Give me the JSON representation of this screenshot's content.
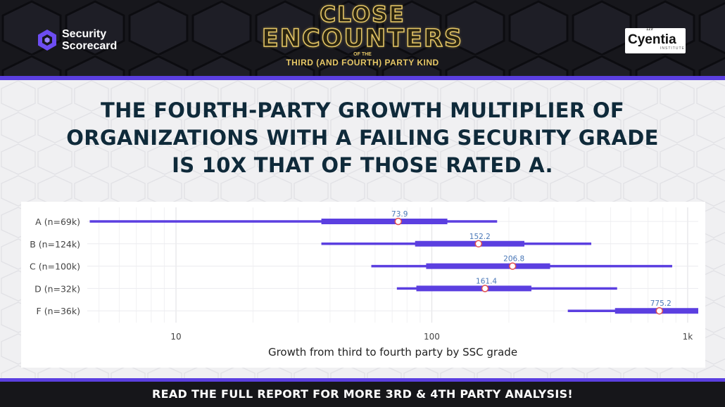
{
  "header": {
    "brand_left_line1": "Security",
    "brand_left_line2": "Scorecard",
    "title_line1": "CLOSE",
    "title_line2": "ENCOUNTERS",
    "title_small": "OF THE",
    "title_sub": "THIRD (AND FOURTH) PARTY KIND",
    "brand_right_name": "Cyentia",
    "brand_right_number": "119",
    "brand_right_institute": "INSTITUTE",
    "left_logo_icon": "hexagon-logo-icon"
  },
  "headline": {
    "line1": "THE FOURTH-PARTY GROWTH MULTIPLIER OF",
    "line2": "ORGANIZATIONS WITH A FAILING SECURITY GRADE",
    "line3": "IS 10X THAT OF THOSE RATED A."
  },
  "chart_data": {
    "type": "range",
    "xlabel": "Growth from third to fourth party by SSC grade",
    "x_scale": "log",
    "xlim": [
      4.5,
      1100
    ],
    "x_ticks": [
      10,
      100,
      1000
    ],
    "x_tick_labels": [
      "10",
      "100",
      "1k"
    ],
    "grid": true,
    "color": "#5b3fe0",
    "marker_color": "#e05050",
    "label_color": "#4a78b8",
    "categories": [
      "A (n=69k)",
      "B (n=124k)",
      "C (n=100k)",
      "D (n=32k)",
      "F (n=36k)"
    ],
    "rows": [
      {
        "label": "A (n=69k)",
        "outer": [
          4.6,
          180
        ],
        "inner": [
          37,
          115
        ],
        "median": 73.9,
        "median_label": "73.9"
      },
      {
        "label": "B (n=124k)",
        "outer": [
          37,
          420
        ],
        "inner": [
          86,
          230
        ],
        "median": 152.2,
        "median_label": "152.2"
      },
      {
        "label": "C (n=100k)",
        "outer": [
          58,
          870
        ],
        "inner": [
          95,
          290
        ],
        "median": 206.8,
        "median_label": "206.8"
      },
      {
        "label": "D (n=32k)",
        "outer": [
          73,
          530
        ],
        "inner": [
          87,
          245
        ],
        "median": 161.4,
        "median_label": "161.4"
      },
      {
        "label": "F (n=36k)",
        "outer": [
          340,
          1100
        ],
        "inner": [
          520,
          1100
        ],
        "median": 775.2,
        "median_label": "775.2"
      }
    ]
  },
  "footer": {
    "text": "READ THE FULL REPORT FOR MORE 3RD & 4TH PARTY ANALYSIS!"
  }
}
